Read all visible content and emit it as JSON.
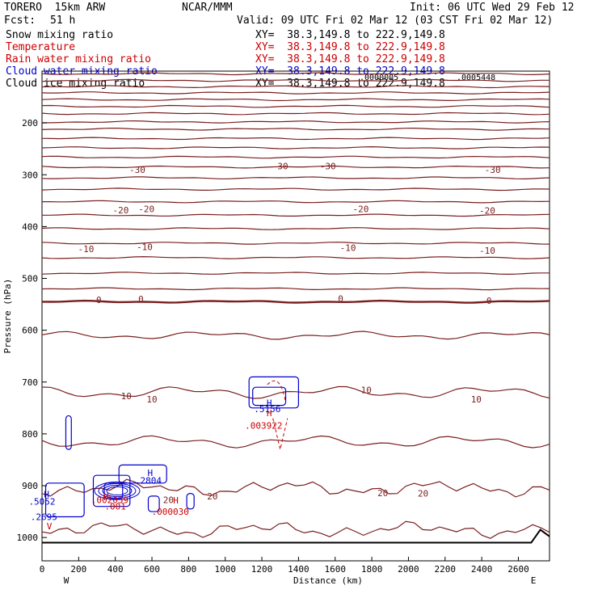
{
  "header": {
    "model": "TORERO  15km ARW",
    "center": "NCAR/MMM",
    "init": "Init: 06 UTC Wed 29 Feb 12",
    "fcst_label": "Fcst:",
    "fcst_value": "51 h",
    "valid": "Valid: 09 UTC Fri 02 Mar 12 (03 CST Fri 02 Mar 12)"
  },
  "fields": [
    {
      "name": "Snow mixing ratio",
      "xy": "XY=  38.3,149.8 to 222.9,149.8",
      "color": "#000000",
      "xy_color": "#000000"
    },
    {
      "name": "Temperature",
      "xy": "XY=  38.3,149.8 to 222.9,149.8",
      "color": "#cc0000",
      "xy_color": "#cc0000"
    },
    {
      "name": "Rain water mixing ratio",
      "xy": "XY=  38.3,149.8 to 222.9,149.8",
      "color": "#cc0000",
      "xy_color": "#cc0000"
    },
    {
      "name": "Cloud water mixing ratio",
      "xy": "XY=  38.3,149.8 to 222.9,149.8",
      "color": "#0000cc",
      "xy_color": "#0000cc"
    },
    {
      "name": "Cloud ice mixing ratio",
      "xy": "XY=  38.3,149.8 to 222.9,149.8",
      "color": "#000000",
      "xy_color": "#000000"
    }
  ],
  "overlap_labels": [
    ".0000005",
    ".0005448"
  ],
  "chart_data": {
    "type": "line",
    "xlabel": "Distance (km)",
    "ylabel": "Pressure (hPa)",
    "xlim": [
      0,
      2770
    ],
    "ylim": [
      100,
      1045
    ],
    "y_scale": "linear, inverted",
    "x_ticks": [
      0,
      200,
      400,
      600,
      800,
      1000,
      1200,
      1400,
      1600,
      1800,
      2000,
      2200,
      2400,
      2600
    ],
    "y_ticks": [
      200,
      300,
      400,
      500,
      600,
      700,
      800,
      900,
      1000
    ],
    "x_end_labels": {
      "left": "W",
      "right": "E"
    },
    "temperature_colors": {
      "line": "#7a1f1f",
      "zero": "#7a1f1f"
    },
    "isotherm_labels": [
      {
        "label": "-30",
        "x": 520,
        "p": 290
      },
      {
        "label": "-30",
        "x": 1300,
        "p": 283
      },
      {
        "label": "-30",
        "x": 1560,
        "p": 283
      },
      {
        "label": "-30",
        "x": 2460,
        "p": 290
      },
      {
        "label": "-20",
        "x": 430,
        "p": 368
      },
      {
        "label": "-20",
        "x": 570,
        "p": 366
      },
      {
        "label": "-20",
        "x": 1740,
        "p": 366
      },
      {
        "label": "-20",
        "x": 2430,
        "p": 369
      },
      {
        "label": "-10",
        "x": 240,
        "p": 443
      },
      {
        "label": "-10",
        "x": 560,
        "p": 439
      },
      {
        "label": "-10",
        "x": 1670,
        "p": 441
      },
      {
        "label": "-10",
        "x": 2430,
        "p": 446
      },
      {
        "label": "0",
        "x": 310,
        "p": 541
      },
      {
        "label": "0",
        "x": 540,
        "p": 540
      },
      {
        "label": "0",
        "x": 1630,
        "p": 539
      },
      {
        "label": "0",
        "x": 2440,
        "p": 543
      },
      {
        "label": "10",
        "x": 460,
        "p": 727
      },
      {
        "label": "10",
        "x": 600,
        "p": 733
      },
      {
        "label": "10",
        "x": 1770,
        "p": 715
      },
      {
        "label": "10",
        "x": 2370,
        "p": 733
      },
      {
        "label": "20",
        "x": 930,
        "p": 920
      },
      {
        "label": "20",
        "x": 1860,
        "p": 914
      },
      {
        "label": "20",
        "x": 2080,
        "p": 915
      },
      {
        "label": "20",
        "x": 690,
        "p": 927
      }
    ],
    "rain_labels": [
      {
        "label": "H",
        "x": 1240,
        "p": 760
      },
      {
        "label": ".003922",
        "x": 1210,
        "p": 784
      },
      {
        "label": ".002039",
        "x": 370,
        "p": 927
      },
      {
        "label": "H",
        "x": 730,
        "p": 928
      },
      {
        "label": ".000030",
        "x": 700,
        "p": 950
      },
      {
        "label": ".001",
        "x": 400,
        "p": 940
      },
      {
        "label": "H",
        "x": 350,
        "p": 920
      },
      {
        "label": "V",
        "x": 40,
        "p": 978
      }
    ],
    "cloud_labels": [
      {
        "label": "H",
        "x": 1240,
        "p": 740
      },
      {
        "label": ".5156",
        "x": 1230,
        "p": 752
      },
      {
        "label": "H",
        "x": 590,
        "p": 875
      },
      {
        "label": ".2804",
        "x": 580,
        "p": 890
      },
      {
        "label": "H",
        "x": 25,
        "p": 916
      },
      {
        "label": ".5052",
        "x": 0,
        "p": 930
      },
      {
        "label": ".2695",
        "x": 10,
        "p": 960
      }
    ]
  }
}
